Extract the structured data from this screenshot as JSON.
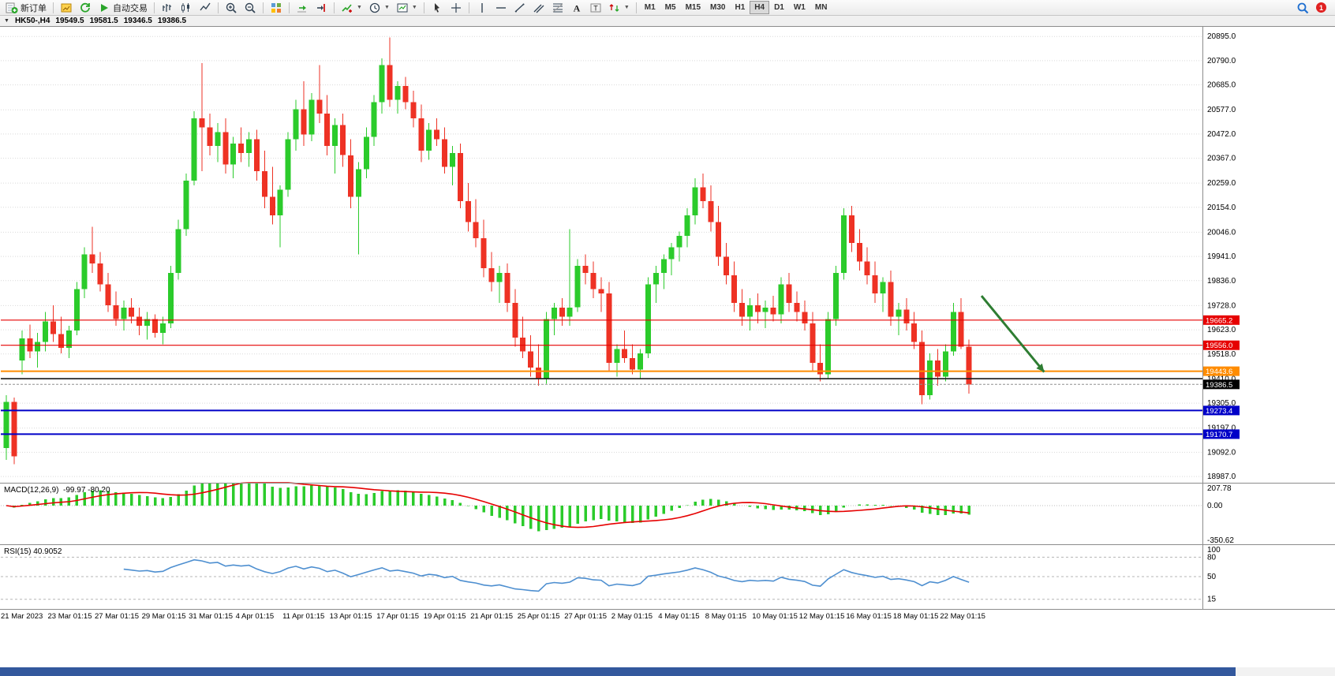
{
  "toolbar": {
    "groups": [
      {
        "name": "trade",
        "items": [
          {
            "name": "new-order",
            "icon": "new-order",
            "label": "新订单"
          }
        ]
      },
      {
        "name": "profiles",
        "items": [
          {
            "name": "charts",
            "icon": "charts"
          },
          {
            "name": "refresh",
            "icon": "refresh"
          },
          {
            "name": "auto-trading",
            "icon": "play",
            "label": "自动交易"
          }
        ]
      },
      {
        "name": "chart-type",
        "items": [
          {
            "name": "bar-chart",
            "icon": "bar-chart"
          },
          {
            "name": "candlestick-chart",
            "icon": "candles"
          },
          {
            "name": "line-chart",
            "icon": "line-chart"
          }
        ]
      },
      {
        "name": "zoom",
        "items": [
          {
            "name": "zoom-in",
            "icon": "zoom-in"
          },
          {
            "name": "zoom-out",
            "icon": "zoom-out"
          }
        ]
      },
      {
        "name": "windows",
        "items": [
          {
            "name": "tile-windows",
            "icon": "tile"
          }
        ]
      },
      {
        "name": "scroll",
        "items": [
          {
            "name": "auto-scroll",
            "icon": "auto-scroll"
          },
          {
            "name": "chart-shift",
            "icon": "chart-shift"
          }
        ]
      },
      {
        "name": "tools",
        "items": [
          {
            "name": "indicators",
            "icon": "indicators",
            "dropdown": true
          },
          {
            "name": "periods",
            "icon": "clock",
            "dropdown": true
          },
          {
            "name": "templates",
            "icon": "template",
            "dropdown": true
          }
        ]
      },
      {
        "name": "pointer",
        "items": [
          {
            "name": "cursor",
            "icon": "cursor"
          },
          {
            "name": "crosshair",
            "icon": "crosshair"
          }
        ]
      },
      {
        "name": "objects",
        "items": [
          {
            "name": "vertical-line",
            "icon": "vline"
          },
          {
            "name": "horizontal-line",
            "icon": "hline"
          },
          {
            "name": "trendline",
            "icon": "trendline"
          },
          {
            "name": "equidistant-channel",
            "icon": "channel"
          },
          {
            "name": "fibonacci",
            "icon": "fibo"
          },
          {
            "name": "text",
            "icon": "text"
          },
          {
            "name": "text-label",
            "icon": "label"
          },
          {
            "name": "arrows",
            "icon": "arrows",
            "dropdown": true
          }
        ]
      }
    ],
    "timeframes": {
      "options": [
        "M1",
        "M5",
        "M15",
        "M30",
        "H1",
        "H4",
        "D1",
        "W1",
        "MN"
      ],
      "active": "H4"
    },
    "right": {
      "notification_count": "1"
    }
  },
  "chart_header": {
    "collapse_glyph": "▼",
    "symbol_period": "HK50-,H4",
    "open": "19549.5",
    "high": "19581.5",
    "low": "19346.5",
    "close": "19386.5"
  },
  "chart_data": {
    "type": "candlestick",
    "title": "HK50-,H4",
    "ohlc_current": {
      "open": 19549.5,
      "high": 19581.5,
      "low": 19346.5,
      "close": 19386.5
    },
    "ylim": [
      18960,
      20940
    ],
    "colors": {
      "up": "#2bcb2b",
      "down": "#ee3224"
    },
    "price_ticks": [
      "20895.0",
      "20790.0",
      "20685.0",
      "20577.0",
      "20472.0",
      "20367.0",
      "20259.0",
      "20154.0",
      "20046.0",
      "19941.0",
      "19836.0",
      "19728.0",
      "19623.0",
      "19518.0",
      "19410.0",
      "19305.0",
      "19197.0",
      "19092.0",
      "18987.0"
    ],
    "x_labels": [
      {
        "bar": 0,
        "text": "21 Mar 2023"
      },
      {
        "bar": 6,
        "text": "23 Mar 01:15"
      },
      {
        "bar": 12,
        "text": "27 Mar 01:15"
      },
      {
        "bar": 18,
        "text": "29 Mar 01:15"
      },
      {
        "bar": 24,
        "text": "31 Mar 01:15"
      },
      {
        "bar": 30,
        "text": "4 Apr 01:15"
      },
      {
        "bar": 36,
        "text": "11 Apr 01:15"
      },
      {
        "bar": 42,
        "text": "13 Apr 01:15"
      },
      {
        "bar": 48,
        "text": "17 Apr 01:15"
      },
      {
        "bar": 54,
        "text": "19 Apr 01:15"
      },
      {
        "bar": 60,
        "text": "21 Apr 01:15"
      },
      {
        "bar": 66,
        "text": "25 Apr 01:15"
      },
      {
        "bar": 72,
        "text": "27 Apr 01:15"
      },
      {
        "bar": 78,
        "text": "2 May 01:15"
      },
      {
        "bar": 84,
        "text": "4 May 01:15"
      },
      {
        "bar": 90,
        "text": "8 May 01:15"
      },
      {
        "bar": 96,
        "text": "10 May 01:15"
      },
      {
        "bar": 102,
        "text": "12 May 01:15"
      },
      {
        "bar": 108,
        "text": "16 May 01:15"
      },
      {
        "bar": 114,
        "text": "18 May 01:15"
      },
      {
        "bar": 120,
        "text": "22 May 01:15"
      }
    ],
    "candles": [
      [
        19110,
        19340,
        19060,
        19310
      ],
      [
        19310,
        19330,
        19040,
        19075
      ],
      [
        19490,
        19620,
        19430,
        19585
      ],
      [
        19585,
        19645,
        19500,
        19530
      ],
      [
        19530,
        19610,
        19460,
        19570
      ],
      [
        19570,
        19700,
        19530,
        19660
      ],
      [
        19660,
        19730,
        19570,
        19605
      ],
      [
        19605,
        19680,
        19520,
        19545
      ],
      [
        19545,
        19640,
        19500,
        19620
      ],
      [
        19620,
        19830,
        19600,
        19800
      ],
      [
        19800,
        19980,
        19760,
        19950
      ],
      [
        19950,
        20070,
        19870,
        19910
      ],
      [
        19910,
        19960,
        19790,
        19820
      ],
      [
        19820,
        19870,
        19700,
        19730
      ],
      [
        19730,
        19790,
        19640,
        19670
      ],
      [
        19670,
        19750,
        19620,
        19720
      ],
      [
        19720,
        19760,
        19650,
        19680
      ],
      [
        19680,
        19720,
        19600,
        19640
      ],
      [
        19640,
        19700,
        19580,
        19670
      ],
      [
        19670,
        19690,
        19590,
        19610
      ],
      [
        19610,
        19680,
        19560,
        19650
      ],
      [
        19650,
        19900,
        19630,
        19870
      ],
      [
        19870,
        20100,
        19840,
        20060
      ],
      [
        20060,
        20300,
        20030,
        20270
      ],
      [
        20270,
        20570,
        20250,
        20540
      ],
      [
        20540,
        20780,
        20310,
        20500
      ],
      [
        20500,
        20560,
        20380,
        20420
      ],
      [
        20420,
        20520,
        20350,
        20480
      ],
      [
        20480,
        20540,
        20300,
        20340
      ],
      [
        20340,
        20460,
        20280,
        20430
      ],
      [
        20430,
        20500,
        20350,
        20390
      ],
      [
        20390,
        20480,
        20330,
        20450
      ],
      [
        20450,
        20490,
        20270,
        20310
      ],
      [
        20310,
        20400,
        20150,
        20200
      ],
      [
        20200,
        20330,
        20080,
        20120
      ],
      [
        20120,
        20250,
        19980,
        20230
      ],
      [
        20230,
        20480,
        20200,
        20450
      ],
      [
        20450,
        20620,
        20400,
        20580
      ],
      [
        20580,
        20700,
        20420,
        20470
      ],
      [
        20470,
        20650,
        20440,
        20620
      ],
      [
        20620,
        20770,
        20520,
        20560
      ],
      [
        20560,
        20640,
        20380,
        20420
      ],
      [
        20420,
        20540,
        20300,
        20510
      ],
      [
        20510,
        20560,
        20330,
        20380
      ],
      [
        20380,
        20450,
        20150,
        20200
      ],
      [
        20200,
        20350,
        19950,
        20320
      ],
      [
        20320,
        20500,
        20280,
        20460
      ],
      [
        20460,
        20640,
        20420,
        20610
      ],
      [
        20610,
        20800,
        20560,
        20770
      ],
      [
        20770,
        20890,
        20590,
        20620
      ],
      [
        20620,
        20700,
        20560,
        20680
      ],
      [
        20680,
        20720,
        20580,
        20610
      ],
      [
        20610,
        20660,
        20500,
        20540
      ],
      [
        20540,
        20600,
        20350,
        20400
      ],
      [
        20400,
        20520,
        20360,
        20490
      ],
      [
        20490,
        20540,
        20420,
        20450
      ],
      [
        20450,
        20500,
        20300,
        20330
      ],
      [
        20330,
        20420,
        20250,
        20390
      ],
      [
        20390,
        20430,
        20150,
        20180
      ],
      [
        20180,
        20260,
        20050,
        20090
      ],
      [
        20090,
        20190,
        19980,
        20020
      ],
      [
        20020,
        20100,
        19850,
        19890
      ],
      [
        19890,
        19960,
        19790,
        19830
      ],
      [
        19830,
        19900,
        19740,
        19870
      ],
      [
        19870,
        19910,
        19700,
        19740
      ],
      [
        19740,
        19800,
        19550,
        19590
      ],
      [
        19590,
        19680,
        19500,
        19530
      ],
      [
        19530,
        19600,
        19420,
        19460
      ],
      [
        19460,
        19560,
        19380,
        19410
      ],
      [
        19410,
        19700,
        19390,
        19670
      ],
      [
        19670,
        19740,
        19600,
        19720
      ],
      [
        19720,
        19760,
        19640,
        19680
      ],
      [
        19680,
        20060,
        19640,
        19720
      ],
      [
        19720,
        19930,
        19700,
        19900
      ],
      [
        19900,
        19950,
        19820,
        19870
      ],
      [
        19870,
        19920,
        19760,
        19800
      ],
      [
        19800,
        19850,
        19700,
        19780
      ],
      [
        19780,
        19830,
        19440,
        19480
      ],
      [
        19480,
        19560,
        19420,
        19540
      ],
      [
        19540,
        19620,
        19480,
        19500
      ],
      [
        19500,
        19560,
        19430,
        19450
      ],
      [
        19450,
        19540,
        19410,
        19520
      ],
      [
        19520,
        19850,
        19500,
        19820
      ],
      [
        19820,
        19900,
        19740,
        19870
      ],
      [
        19870,
        19950,
        19800,
        19930
      ],
      [
        19930,
        20000,
        19860,
        19980
      ],
      [
        19980,
        20050,
        19920,
        20030
      ],
      [
        20030,
        20150,
        19980,
        20120
      ],
      [
        20120,
        20280,
        20080,
        20240
      ],
      [
        20240,
        20300,
        20150,
        20180
      ],
      [
        20180,
        20250,
        20050,
        20090
      ],
      [
        20090,
        20160,
        19900,
        19940
      ],
      [
        19940,
        20000,
        19820,
        19860
      ],
      [
        19860,
        19920,
        19700,
        19740
      ],
      [
        19740,
        19800,
        19640,
        19680
      ],
      [
        19680,
        19760,
        19620,
        19730
      ],
      [
        19730,
        19780,
        19650,
        19700
      ],
      [
        19700,
        19750,
        19630,
        19720
      ],
      [
        19720,
        19770,
        19660,
        19690
      ],
      [
        19690,
        19850,
        19650,
        19820
      ],
      [
        19820,
        19870,
        19700,
        19740
      ],
      [
        19740,
        19790,
        19660,
        19700
      ],
      [
        19700,
        19750,
        19620,
        19650
      ],
      [
        19650,
        19700,
        19440,
        19480
      ],
      [
        19480,
        19560,
        19400,
        19430
      ],
      [
        19430,
        19700,
        19410,
        19670
      ],
      [
        19670,
        19900,
        19640,
        19870
      ],
      [
        19870,
        20150,
        19840,
        20120
      ],
      [
        20120,
        20160,
        19960,
        20000
      ],
      [
        20000,
        20060,
        19880,
        19920
      ],
      [
        19920,
        19980,
        19820,
        19860
      ],
      [
        19860,
        19920,
        19740,
        19780
      ],
      [
        19780,
        19850,
        19700,
        19830
      ],
      [
        19830,
        19880,
        19640,
        19680
      ],
      [
        19680,
        19740,
        19600,
        19710
      ],
      [
        19710,
        19760,
        19620,
        19650
      ],
      [
        19650,
        19700,
        19540,
        19570
      ],
      [
        19570,
        19620,
        19300,
        19340
      ],
      [
        19340,
        19520,
        19320,
        19490
      ],
      [
        19490,
        19540,
        19380,
        19420
      ],
      [
        19420,
        19560,
        19400,
        19530
      ],
      [
        19530,
        19740,
        19510,
        19700
      ],
      [
        19700,
        19760,
        19540,
        19550
      ],
      [
        19549.5,
        19581.5,
        19346.5,
        19386.5
      ]
    ],
    "hlines": [
      {
        "price": 19665.2,
        "label": "19665.2",
        "color": "#e60000",
        "width": 1.2
      },
      {
        "price": 19556.0,
        "label": "19556.0",
        "color": "#e60000",
        "width": 1.2
      },
      {
        "price": 19443.6,
        "label": "19443.6",
        "color": "#ff8c00",
        "width": 2
      },
      {
        "price": 19411.0,
        "label": "",
        "color": "#1a1a1a",
        "width": 1.6
      },
      {
        "price": 19273.4,
        "label": "19273.4",
        "color": "#0000c8",
        "width": 2
      },
      {
        "price": 19170.7,
        "label": "19170.7",
        "color": "#0000c8",
        "width": 2
      }
    ],
    "bid": {
      "price": 19386.5,
      "label": "19386.5",
      "badge_color": "#000000"
    },
    "arrow": {
      "from_bar": 124.6,
      "from_price": 19770,
      "to_bar": 132.6,
      "to_price": 19440,
      "color": "#2e7d32"
    },
    "indicators": {
      "macd": {
        "label": "MACD(12,26,9)",
        "values": "-99.97 -80.20",
        "params": [
          12,
          26,
          9
        ],
        "range": [
          -350.62,
          207.78
        ],
        "axis_ticks": [
          {
            "v": 207.78,
            "text": "207.78"
          },
          {
            "v": 0,
            "text": "0.00"
          },
          {
            "v": -350.62,
            "text": "-350.62"
          }
        ],
        "hist_color": "#2bcb2b",
        "signal_color": "#e60000"
      },
      "rsi": {
        "label": "RSI(15)",
        "value": "40.9052",
        "period": 15,
        "range": [
          0,
          100
        ],
        "axis_ticks": [
          {
            "v": 100,
            "text": "100"
          },
          {
            "v": 80,
            "text": "80"
          },
          {
            "v": 50,
            "text": "50"
          },
          {
            "v": 15,
            "text": "15"
          }
        ],
        "levels": [
          80,
          50,
          15
        ],
        "line_color": "#4e8fd0"
      }
    }
  }
}
